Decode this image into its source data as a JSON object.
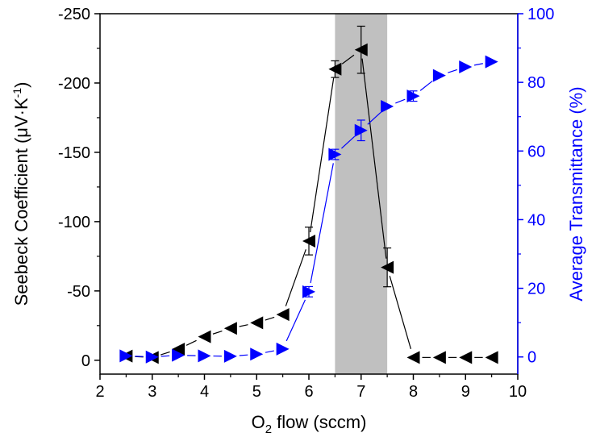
{
  "chart_data": {
    "type": "scatter",
    "title": "",
    "xlabel": "O₂ flow (sccm)",
    "xlabel_parts": {
      "prefix": "O",
      "subscript": "2",
      "suffix": " flow (sccm)"
    },
    "ylabel_left": "Seebeck Coefficient (μV·K⁻¹)",
    "ylabel_left_parts": {
      "main": "Seebeck Coefficient (μV·K",
      "superscript": "-1",
      "close": ")"
    },
    "ylabel_right": "Average Transmittance (%)",
    "xlim": [
      2,
      10
    ],
    "ylim_left": [
      10,
      -250
    ],
    "ylim_right": [
      -5,
      100
    ],
    "x_ticks": [
      "2",
      "3",
      "4",
      "5",
      "6",
      "7",
      "8",
      "9",
      "10"
    ],
    "y_left_ticks": [
      "-250",
      "-200",
      "-150",
      "-100",
      "-50",
      "0"
    ],
    "y_right_ticks": [
      "100",
      "80",
      "60",
      "40",
      "20",
      "0"
    ],
    "highlight_band": {
      "x_start": 6.5,
      "x_end": 7.5,
      "color": "#c0c0c0"
    },
    "grid": false,
    "legend": "none",
    "series": [
      {
        "axis": "left",
        "marker": "left-triangle",
        "color": "#000000",
        "line_style": "dashed-segments",
        "points": [
          {
            "x": 2.5,
            "y": -3
          },
          {
            "x": 3.0,
            "y": -2
          },
          {
            "x": 3.5,
            "y": -8
          },
          {
            "x": 4.0,
            "y": -17
          },
          {
            "x": 4.5,
            "y": -23
          },
          {
            "x": 5.0,
            "y": -27
          },
          {
            "x": 5.5,
            "y": -33
          },
          {
            "x": 6.0,
            "y": -86,
            "err": 10
          },
          {
            "x": 6.5,
            "y": -210,
            "err": 6
          },
          {
            "x": 7.0,
            "y": -224,
            "err": 17
          },
          {
            "x": 7.5,
            "y": -67,
            "err": 14
          },
          {
            "x": 8.0,
            "y": -2
          },
          {
            "x": 8.5,
            "y": -2
          },
          {
            "x": 9.0,
            "y": -2
          },
          {
            "x": 9.5,
            "y": -2
          }
        ]
      },
      {
        "axis": "right",
        "marker": "right-triangle",
        "color": "#0000ff",
        "line_style": "dashed-segments",
        "points": [
          {
            "x": 2.5,
            "y": 0.3
          },
          {
            "x": 3.0,
            "y": 0
          },
          {
            "x": 3.5,
            "y": 0.5
          },
          {
            "x": 4.0,
            "y": 0.3
          },
          {
            "x": 4.5,
            "y": 0.2
          },
          {
            "x": 5.0,
            "y": 0.8
          },
          {
            "x": 5.5,
            "y": 2.3
          },
          {
            "x": 6.0,
            "y": 19,
            "err": 1.5
          },
          {
            "x": 6.5,
            "y": 59,
            "err": 1.5
          },
          {
            "x": 7.0,
            "y": 66,
            "err": 3
          },
          {
            "x": 7.5,
            "y": 73
          },
          {
            "x": 8.0,
            "y": 76,
            "err": 1.5
          },
          {
            "x": 8.5,
            "y": 82
          },
          {
            "x": 9.0,
            "y": 84.5
          },
          {
            "x": 9.5,
            "y": 86
          }
        ]
      }
    ],
    "colors": {
      "left_axis": "#000000",
      "right_axis": "#0000ff",
      "band": "#c0c0c0"
    }
  }
}
